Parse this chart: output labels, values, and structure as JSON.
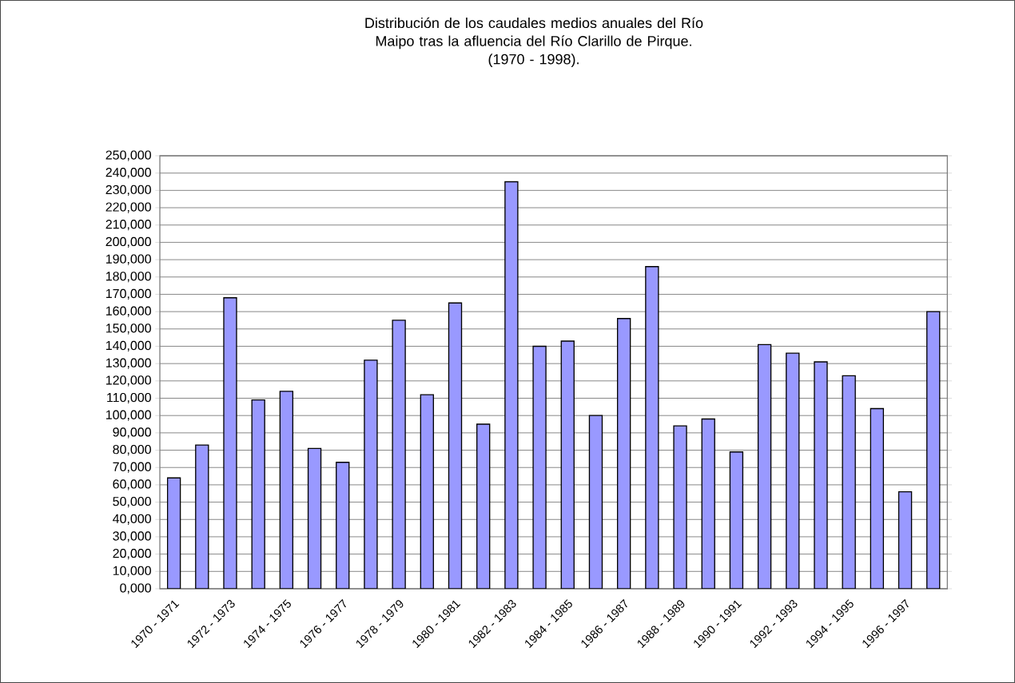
{
  "chart_data": {
    "type": "bar",
    "title": "Distribución de los caudales medios anuales del Río Maipo tras la afluencia del Río Clarillo de Pirque.",
    "subtitle": "(1970 - 1998).",
    "categories": [
      "1970 - 1971",
      null,
      "1972 - 1973",
      null,
      "1974 - 1975",
      null,
      "1976 - 1977",
      null,
      "1978 - 1979",
      null,
      "1980 - 1981",
      null,
      "1982 - 1983",
      null,
      "1984 - 1985",
      null,
      "1986 - 1987",
      null,
      "1988 - 1989",
      null,
      "1990 - 1991",
      null,
      "1992 - 1993",
      null,
      "1994 - 1995",
      null,
      "1996 - 1997",
      null
    ],
    "values": [
      64000,
      83000,
      168000,
      109000,
      114000,
      81000,
      73000,
      132000,
      155000,
      112000,
      165000,
      95000,
      235000,
      140000,
      143000,
      100000,
      156000,
      186000,
      94000,
      98000,
      79000,
      141000,
      136000,
      131000,
      123000,
      104000,
      56000,
      160000
    ],
    "color": "#9999ff",
    "ylim": [
      0,
      250000
    ],
    "yticks": [
      {
        "value": 0,
        "label": "0,000"
      },
      {
        "value": 10000,
        "label": "10,000"
      },
      {
        "value": 20000,
        "label": "20,000"
      },
      {
        "value": 30000,
        "label": "30,000"
      },
      {
        "value": 40000,
        "label": "40,000"
      },
      {
        "value": 50000,
        "label": "50,000"
      },
      {
        "value": 60000,
        "label": "60,000"
      },
      {
        "value": 70000,
        "label": "70,000"
      },
      {
        "value": 80000,
        "label": "80,000"
      },
      {
        "value": 90000,
        "label": "90,000"
      },
      {
        "value": 100000,
        "label": "100,000"
      },
      {
        "value": 110000,
        "label": "110,000"
      },
      {
        "value": 120000,
        "label": "120,000"
      },
      {
        "value": 130000,
        "label": "130,000"
      },
      {
        "value": 140000,
        "label": "140,000"
      },
      {
        "value": 150000,
        "label": "150,000"
      },
      {
        "value": 160000,
        "label": "160,000"
      },
      {
        "value": 170000,
        "label": "170,000"
      },
      {
        "value": 180000,
        "label": "180,000"
      },
      {
        "value": 190000,
        "label": "190,000"
      },
      {
        "value": 200000,
        "label": "200,000"
      },
      {
        "value": 210000,
        "label": "210,000"
      },
      {
        "value": 220000,
        "label": "220,000"
      },
      {
        "value": 230000,
        "label": "230,000"
      },
      {
        "value": 240000,
        "label": "240,000"
      },
      {
        "value": 250000,
        "label": "250,000"
      }
    ],
    "grid": "y"
  }
}
